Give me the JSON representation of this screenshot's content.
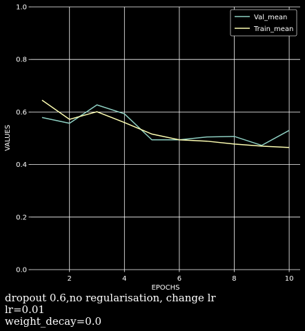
{
  "chart_data": {
    "type": "line",
    "xlabel": "EPOCHS",
    "ylabel": "VALUES",
    "xlim": [
      0.6,
      10.4
    ],
    "ylim": [
      0.0,
      1.0
    ],
    "xticks": [
      2,
      4,
      6,
      8,
      10
    ],
    "yticks": [
      0.0,
      0.2,
      0.4,
      0.6,
      0.8,
      1.0
    ],
    "ytick_labels": [
      "0.0",
      "0.2",
      "0.4",
      "0.6",
      "0.8",
      "1.0"
    ],
    "grid": true,
    "legend_position": "top-right",
    "x": [
      1,
      2,
      3,
      4,
      5,
      6,
      7,
      8,
      9,
      10
    ],
    "series": [
      {
        "name": "Val_mean",
        "color": "#8ecfc2",
        "values": [
          0.579,
          0.557,
          0.627,
          0.593,
          0.494,
          0.494,
          0.505,
          0.507,
          0.473,
          0.53
        ]
      },
      {
        "name": "Train_mean",
        "color": "#ffffb3",
        "values": [
          0.645,
          0.572,
          0.601,
          0.56,
          0.516,
          0.494,
          0.489,
          0.478,
          0.47,
          0.465
        ]
      }
    ]
  },
  "caption": {
    "line1": "dropout 0.6,no regularisation, change lr",
    "line2": "lr=0.01",
    "line3": "weight_decay=0.0"
  },
  "colors": {
    "background": "#000000",
    "grid": "#ffffff",
    "text": "#ffffff"
  }
}
